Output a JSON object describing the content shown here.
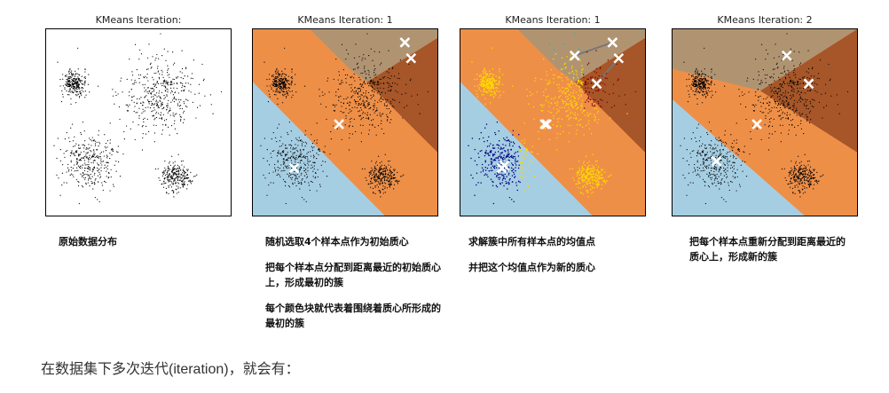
{
  "palette": {
    "blue": "#a6cee3",
    "orange": "#ee8f48",
    "tan": "#b09472",
    "brown": "#a65628",
    "yellow": "#ffd700",
    "navy": "#000080",
    "darkred": "#8b0000",
    "cyan": "#00bcd4",
    "dot": "#000000"
  },
  "panels": [
    {
      "title": "KMeans Iteration:",
      "caption": [
        "原始数据分布"
      ]
    },
    {
      "title": "KMeans Iteration: 1",
      "caption": [
        "随机选取4个样本点作为初始质心",
        "把每个样本点分配到距离最近的初始质心上，形成最初的簇",
        "每个颜色块就代表着围绕着质心所形成的最初的簇"
      ]
    },
    {
      "title": "KMeans Iteration: 1",
      "caption": [
        "求解簇中所有样本点的均值点",
        "并把这个均值点作为新的质心"
      ]
    },
    {
      "title": "KMeans Iteration: 2",
      "caption": [
        "把每个样本点重新分配到距离最近的质心上，形成新的簇"
      ]
    }
  ],
  "footer_text": "在数据集下多次迭代(iteration)，就会有："
}
